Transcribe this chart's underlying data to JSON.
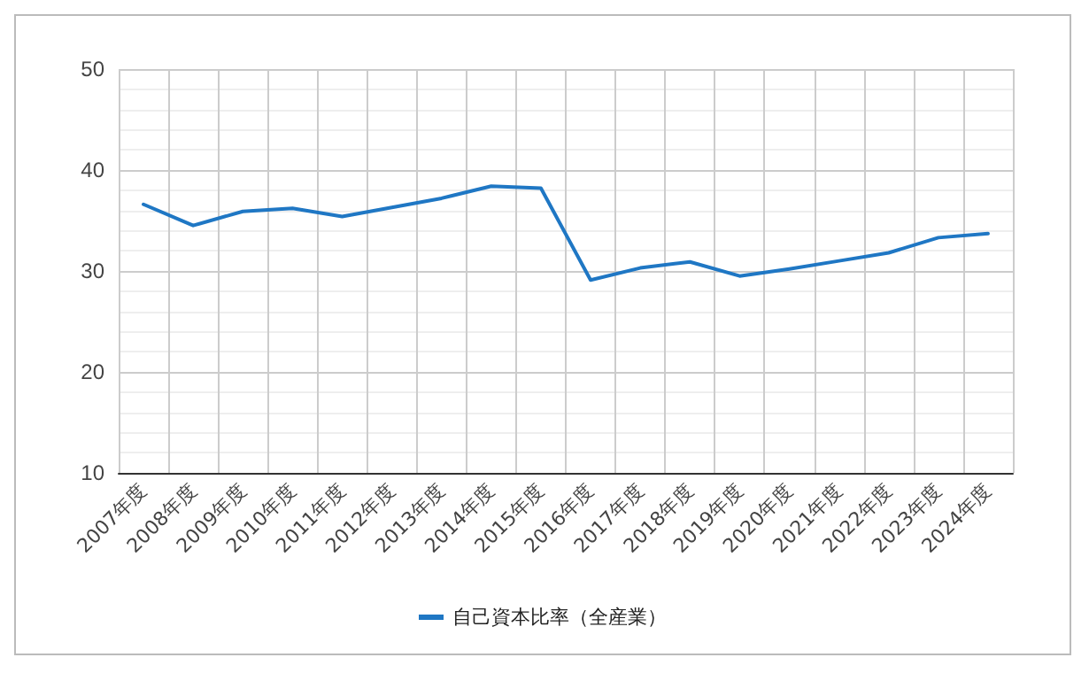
{
  "chart_data": {
    "type": "line",
    "categories": [
      "2007年度",
      "2008年度",
      "2009年度",
      "2010年度",
      "2011年度",
      "2012年度",
      "2013年度",
      "2014年度",
      "2015年度",
      "2016年度",
      "2017年度",
      "2018年度",
      "2019年度",
      "2020年度",
      "2021年度",
      "2022年度",
      "2023年度",
      "2024年度"
    ],
    "series": [
      {
        "name": "自己資本比率（全産業）",
        "color": "#1f77c4",
        "values": [
          36.6,
          34.5,
          35.9,
          36.2,
          35.4,
          36.3,
          37.2,
          38.4,
          38.2,
          29.1,
          30.3,
          30.9,
          29.5,
          30.2,
          31.0,
          31.8,
          33.3,
          33.7
        ]
      }
    ],
    "ylim": [
      10,
      50
    ],
    "yticks": [
      10,
      20,
      30,
      40,
      50
    ],
    "grid": true,
    "legend": "bottom",
    "marker": "none",
    "line_style": "solid"
  }
}
